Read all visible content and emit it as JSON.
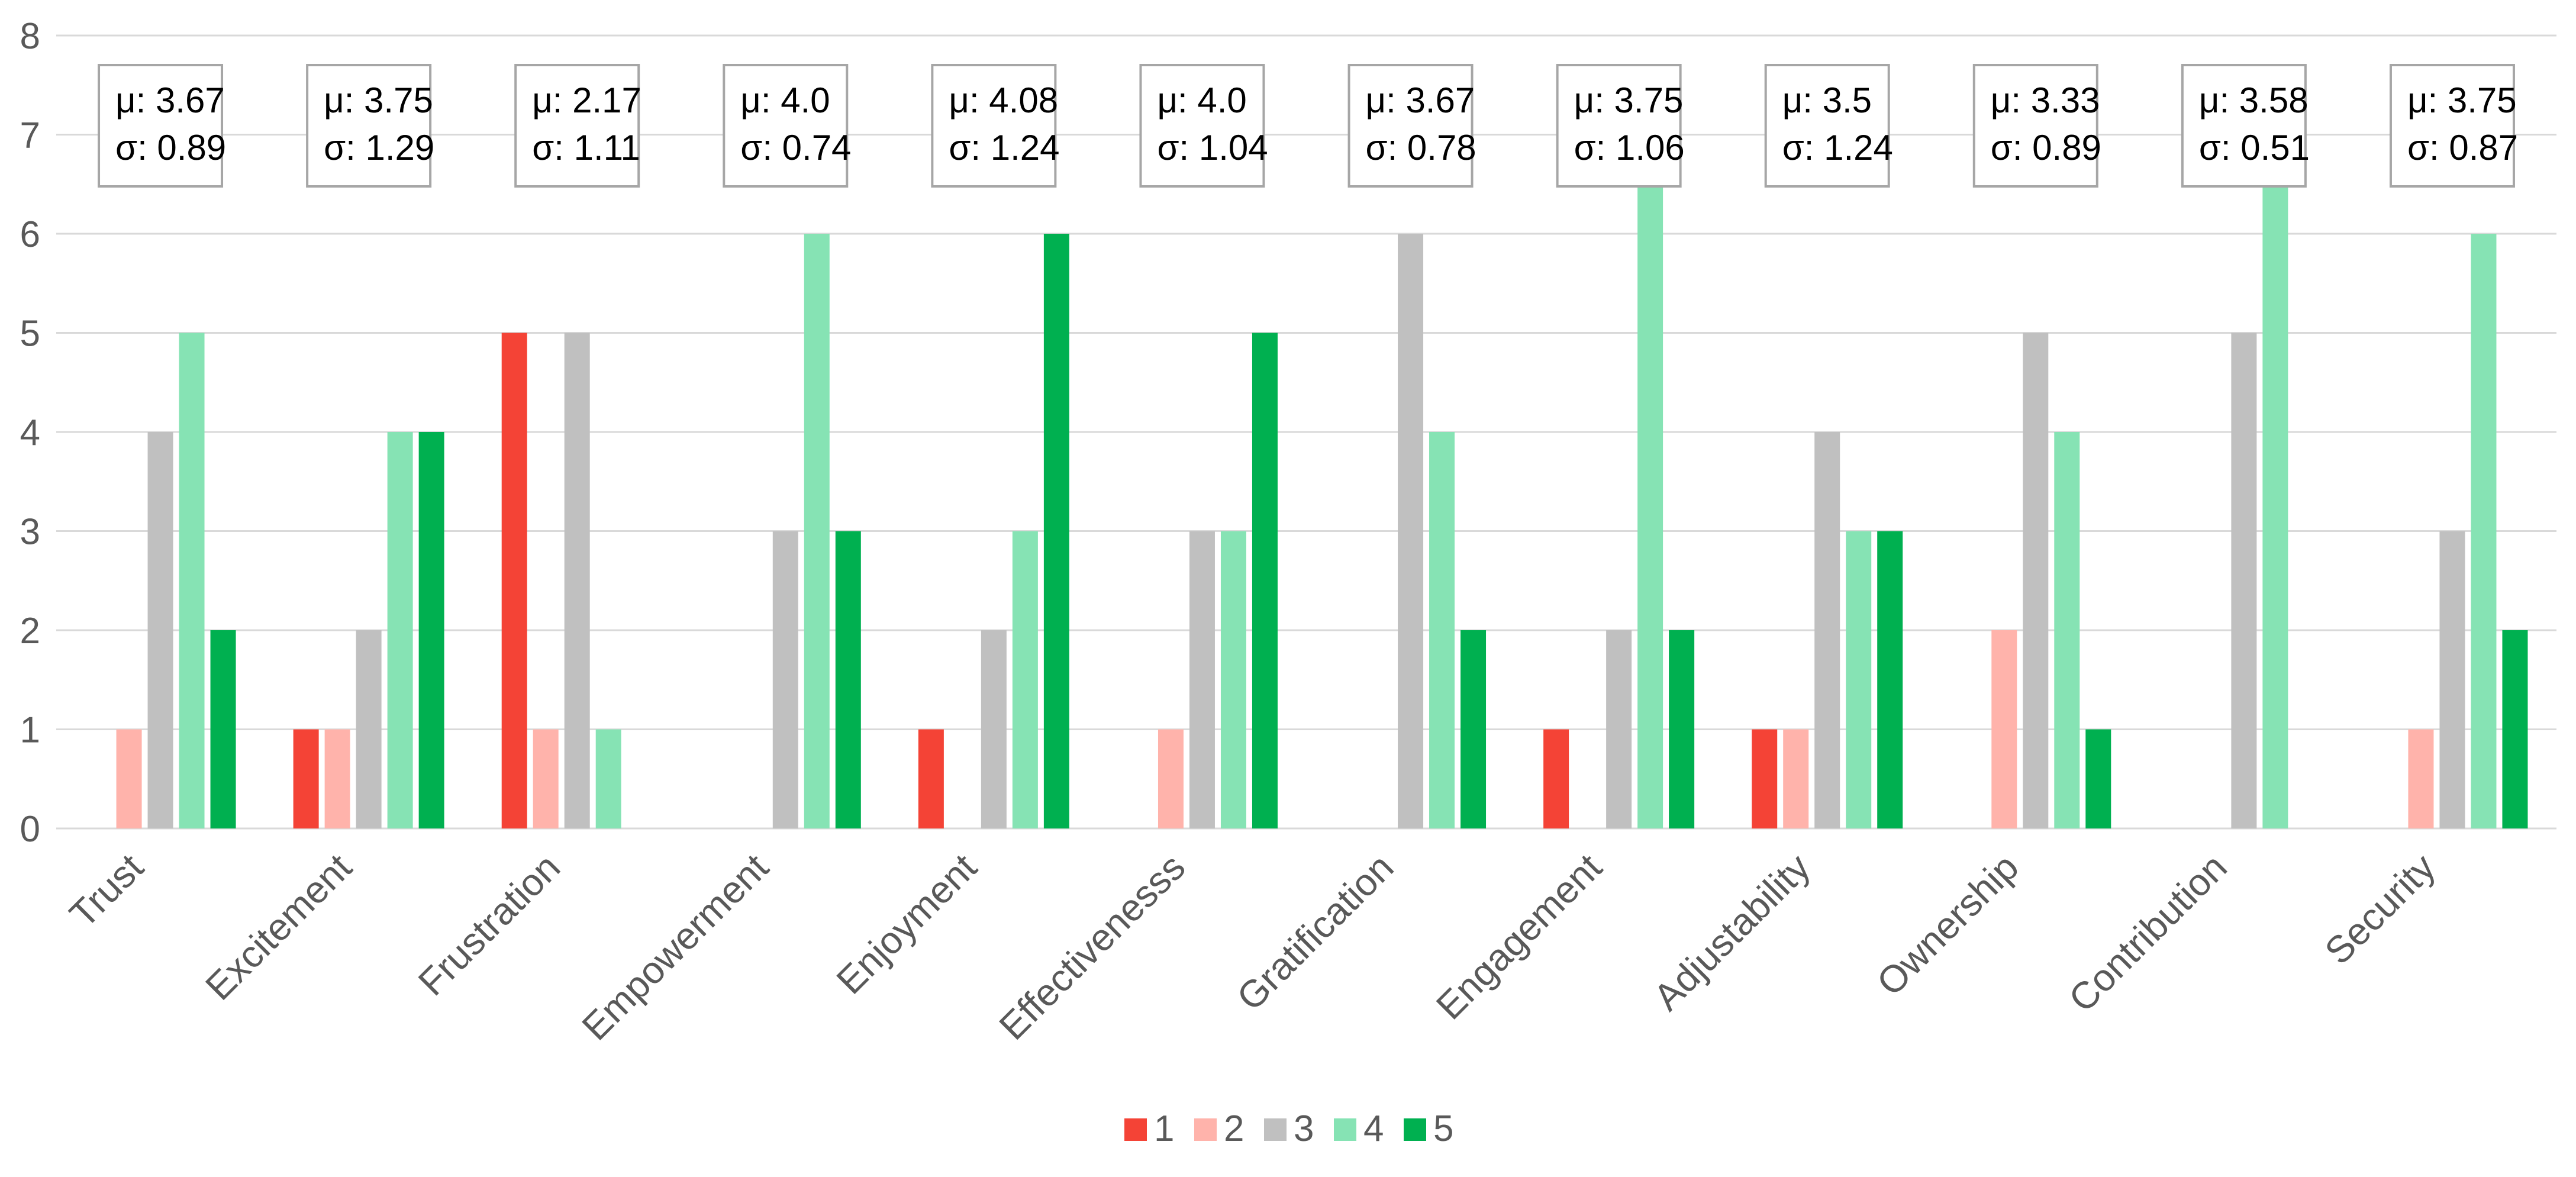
{
  "chart_data": {
    "type": "bar",
    "title": "",
    "xlabel": "",
    "ylabel": "",
    "ylim": [
      0,
      8
    ],
    "yticks": [
      "0",
      "1",
      "2",
      "3",
      "4",
      "5",
      "6",
      "7",
      "8"
    ],
    "grid": true,
    "legend_position": "bottom",
    "categories": [
      "Trust",
      "Excitement",
      "Frustration",
      "Empowerment",
      "Enjoyment",
      "Effectivenesss",
      "Gratification",
      "Engagement",
      "Adjustability",
      "Ownership",
      "Contribution",
      "Security"
    ],
    "series": [
      {
        "name": "1",
        "color": "#f44336",
        "values": [
          0,
          1,
          5,
          0,
          1,
          0,
          0,
          1,
          1,
          0,
          0,
          0
        ]
      },
      {
        "name": "2",
        "color": "#ffb3ab",
        "values": [
          1,
          1,
          1,
          0,
          0,
          1,
          0,
          0,
          1,
          2,
          0,
          1
        ]
      },
      {
        "name": "3",
        "color": "#c0c0c0",
        "values": [
          4,
          2,
          5,
          3,
          2,
          3,
          6,
          2,
          4,
          5,
          5,
          3
        ]
      },
      {
        "name": "4",
        "color": "#86e3b4",
        "values": [
          5,
          4,
          1,
          6,
          3,
          3,
          4,
          7,
          3,
          4,
          7,
          6
        ]
      },
      {
        "name": "5",
        "color": "#00b050",
        "values": [
          2,
          4,
          0,
          3,
          6,
          5,
          2,
          2,
          3,
          1,
          0,
          2
        ]
      }
    ],
    "annotations": [
      {
        "mean": "μ: 3.67",
        "sd": "σ: 0.89"
      },
      {
        "mean": "μ: 3.75",
        "sd": "σ: 1.29"
      },
      {
        "mean": "μ: 2.17",
        "sd": "σ: 1.11"
      },
      {
        "mean": "μ: 4.0",
        "sd": "σ: 0.74"
      },
      {
        "mean": "μ: 4.08",
        "sd": "σ: 1.24"
      },
      {
        "mean": "μ: 4.0",
        "sd": "σ: 1.04"
      },
      {
        "mean": "μ: 3.67",
        "sd": "σ: 0.78"
      },
      {
        "mean": "μ: 3.75",
        "sd": "σ: 1.06"
      },
      {
        "mean": "μ: 3.5",
        "sd": "σ: 1.24"
      },
      {
        "mean": "μ: 3.33",
        "sd": "σ: 0.89"
      },
      {
        "mean": "μ: 3.58",
        "sd": "σ: 0.51"
      },
      {
        "mean": "μ: 3.75",
        "sd": "σ: 0.87"
      }
    ]
  }
}
